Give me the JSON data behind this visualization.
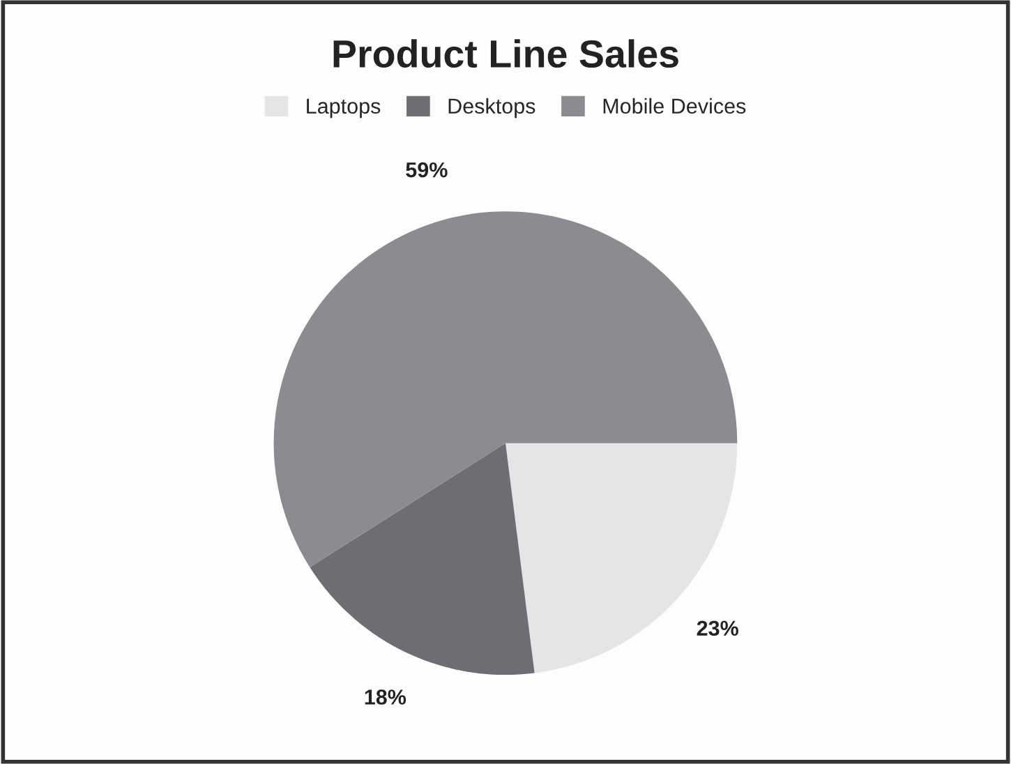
{
  "chart_data": {
    "type": "pie",
    "title": "Product Line Sales",
    "categories": [
      "Laptops",
      "Desktops",
      "Mobile Devices"
    ],
    "values": [
      23,
      18,
      59
    ],
    "colors": [
      "#e4e5e7",
      "#6d6e71",
      "#8a8c8f"
    ],
    "value_labels": [
      "23%",
      "18%",
      "59%"
    ],
    "legend": "top"
  }
}
